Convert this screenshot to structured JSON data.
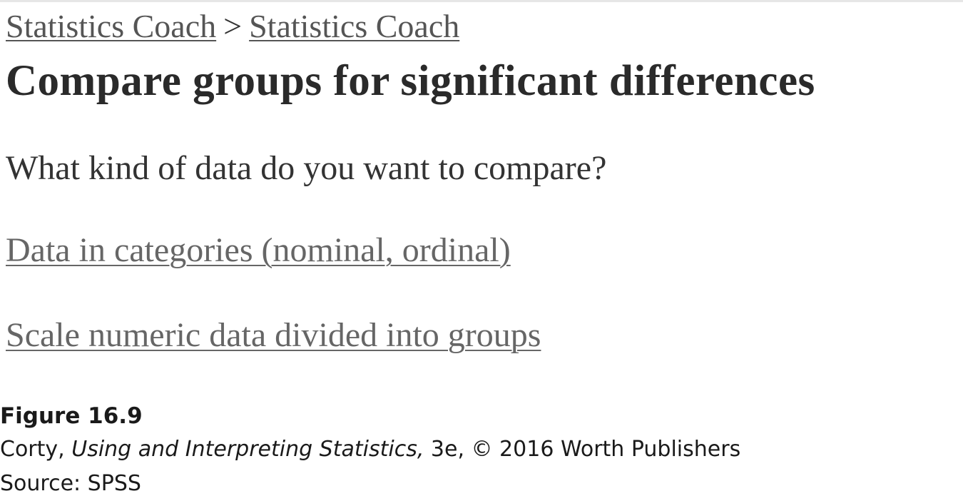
{
  "breadcrumb": {
    "link1": "Statistics Coach",
    "separator": ">",
    "link2": "Statistics Coach"
  },
  "title": "Compare groups for significant differences",
  "question": "What kind of data do you want to compare?",
  "options": [
    {
      "label": "Data in categories (nominal, ordinal)"
    },
    {
      "label": "Scale numeric data divided into groups"
    }
  ],
  "caption": {
    "figure_label": "Figure 16.9",
    "author": "Corty,",
    "book_title": "Using and Interpreting Statistics,",
    "edition_copyright": "3e, © 2016 Worth Publishers",
    "source": "Source: SPSS"
  }
}
